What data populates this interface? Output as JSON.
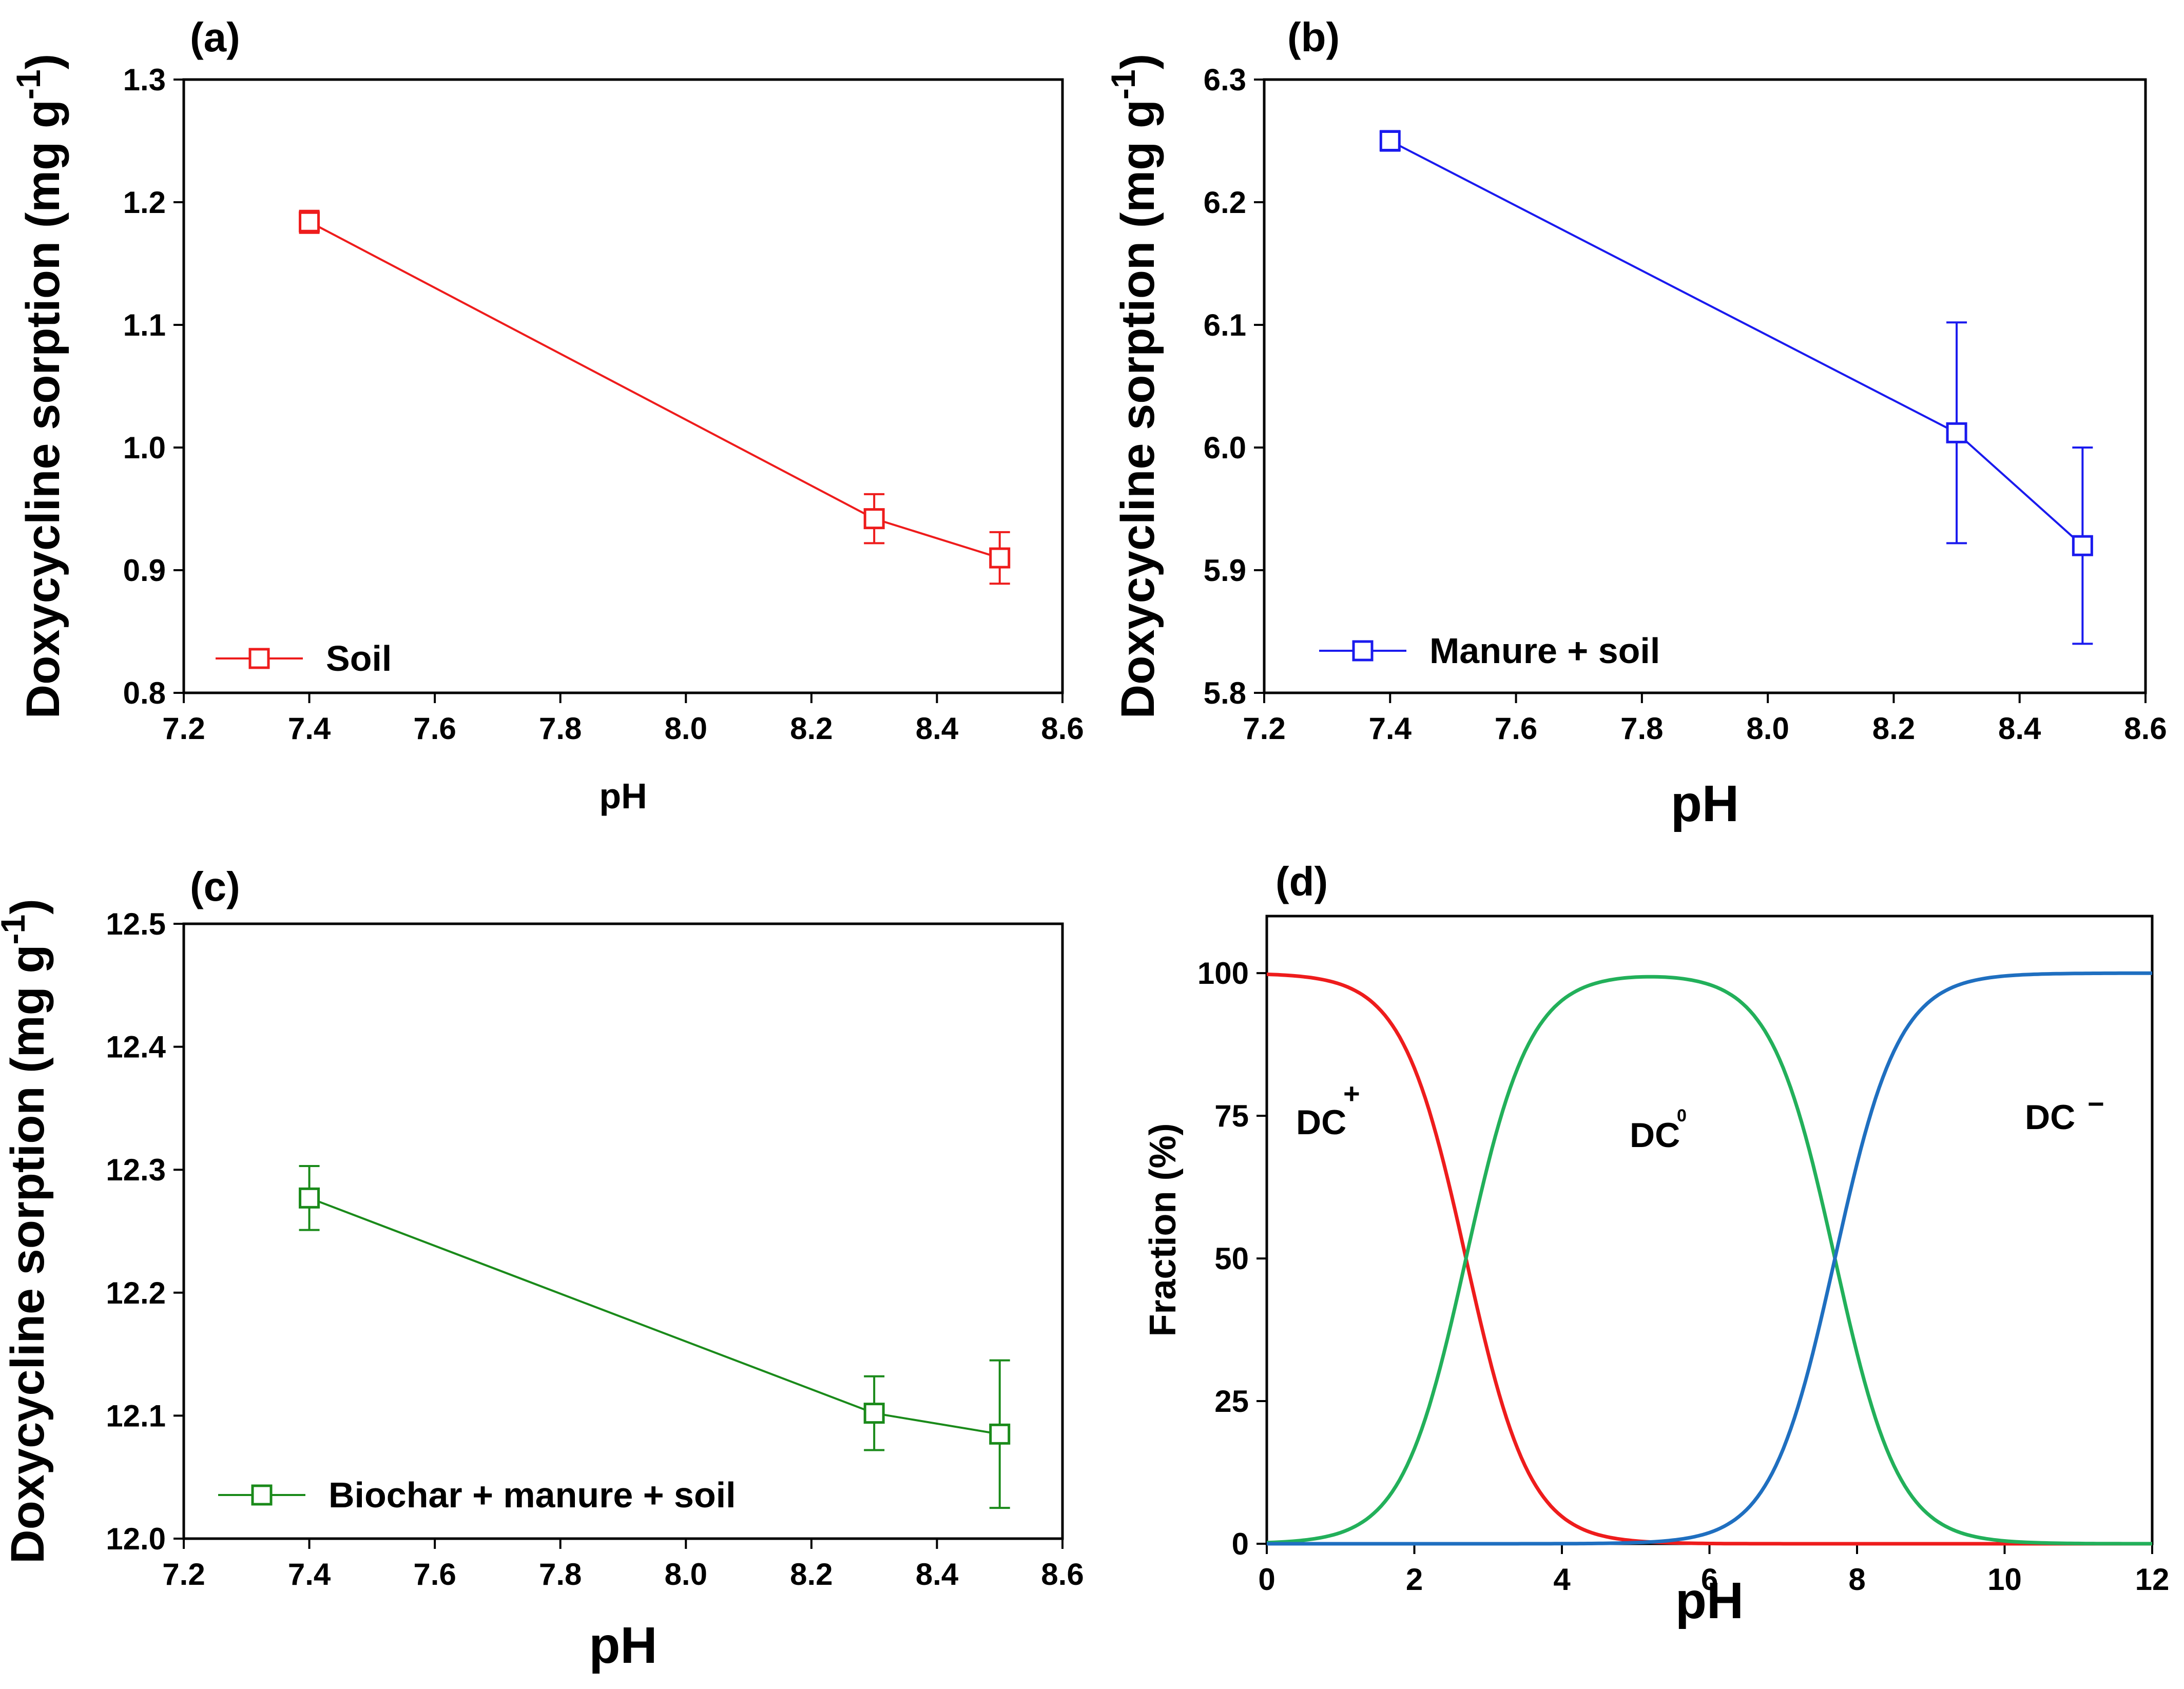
{
  "chart_data": [
    {
      "type": "line",
      "panel_label": "(a)",
      "xlabel": "pH",
      "ylabel": "Doxycycline sorption (mg g",
      "ylabel_sup": "-1",
      "ylabel_close": ")",
      "xlim": [
        7.2,
        8.6
      ],
      "ylim": [
        0.8,
        1.3
      ],
      "xticks": [
        "7.2",
        "7.4",
        "7.6",
        "7.8",
        "8.0",
        "8.2",
        "8.4",
        "8.6"
      ],
      "yticks": [
        "0.8",
        "0.9",
        "1.0",
        "1.1",
        "1.2",
        "1.3"
      ],
      "color": "#ee1c1c",
      "legend": "Soil",
      "series": [
        {
          "name": "Soil",
          "x": [
            7.4,
            8.3,
            8.5
          ],
          "y": [
            1.184,
            0.942,
            0.91
          ],
          "err": [
            0.009,
            0.02,
            0.021
          ]
        }
      ]
    },
    {
      "type": "line",
      "panel_label": "(b)",
      "xlabel": "pH",
      "ylabel": "Doxycycline sorption (mg g",
      "ylabel_sup": "-1",
      "ylabel_close": ")",
      "xlim": [
        7.2,
        8.6
      ],
      "ylim": [
        5.8,
        6.3
      ],
      "xticks": [
        "7.2",
        "7.4",
        "7.6",
        "7.8",
        "8.0",
        "8.2",
        "8.4",
        "8.6"
      ],
      "yticks": [
        "5.8",
        "5.9",
        "6.0",
        "6.1",
        "6.2",
        "6.3"
      ],
      "color": "#1a1aee",
      "legend": "Manure + soil",
      "series": [
        {
          "name": "Manure + soil",
          "x": [
            7.4,
            8.3,
            8.5
          ],
          "y": [
            6.25,
            6.012,
            5.92
          ],
          "err": [
            0.008,
            0.09,
            0.08
          ]
        }
      ]
    },
    {
      "type": "line",
      "panel_label": "(c)",
      "xlabel": "pH",
      "ylabel": "Doxycycline sorption (mg g",
      "ylabel_sup": "-1",
      "ylabel_close": ")",
      "xlim": [
        7.2,
        8.6
      ],
      "ylim": [
        12.0,
        12.5
      ],
      "xticks": [
        "7.2",
        "7.4",
        "7.6",
        "7.8",
        "8.0",
        "8.2",
        "8.4",
        "8.6"
      ],
      "yticks": [
        "12.0",
        "12.1",
        "12.2",
        "12.3",
        "12.4",
        "12.5"
      ],
      "color": "#1a8a1a",
      "legend": "Biochar + manure + soil",
      "series": [
        {
          "name": "Biochar + manure + soil",
          "x": [
            7.4,
            8.3,
            8.5
          ],
          "y": [
            12.277,
            12.102,
            12.085
          ],
          "err": [
            0.026,
            0.03,
            0.06
          ]
        }
      ]
    },
    {
      "type": "line",
      "panel_label": "(d)",
      "xlabel": "pH",
      "ylabel": "Fraction (%)",
      "xlim": [
        0,
        12
      ],
      "ylim": [
        0,
        110
      ],
      "xticks": [
        "0",
        "2",
        "4",
        "6",
        "8",
        "10",
        "12"
      ],
      "yticks": [
        "0",
        "25",
        "50",
        "75",
        "100"
      ],
      "pKa1": 2.7,
      "pKa2": 7.7,
      "series": [
        {
          "name": "DC+",
          "label": "DC",
          "sup": "+",
          "color": "#ee1c1c"
        },
        {
          "name": "DC0",
          "label": "DC",
          "sup": "0",
          "color": "#22b05a"
        },
        {
          "name": "DC-",
          "label": "DC",
          "sup": "−",
          "color": "#1f6fc0"
        }
      ]
    }
  ]
}
